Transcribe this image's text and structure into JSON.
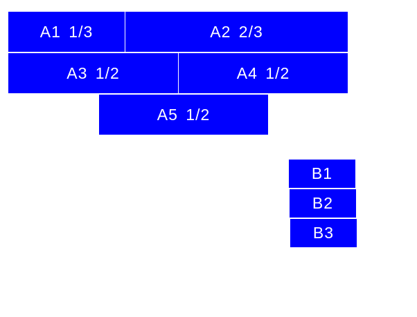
{
  "accent_color": "#0000ff",
  "group_a": [
    {
      "label": "A1 1/3"
    },
    {
      "label": "A2 2/3"
    },
    {
      "label": "A3 1/2"
    },
    {
      "label": "A4 1/2"
    },
    {
      "label": "A5 1/2"
    }
  ],
  "group_b": [
    {
      "label": "B1"
    },
    {
      "label": "B2"
    },
    {
      "label": "B3"
    }
  ]
}
